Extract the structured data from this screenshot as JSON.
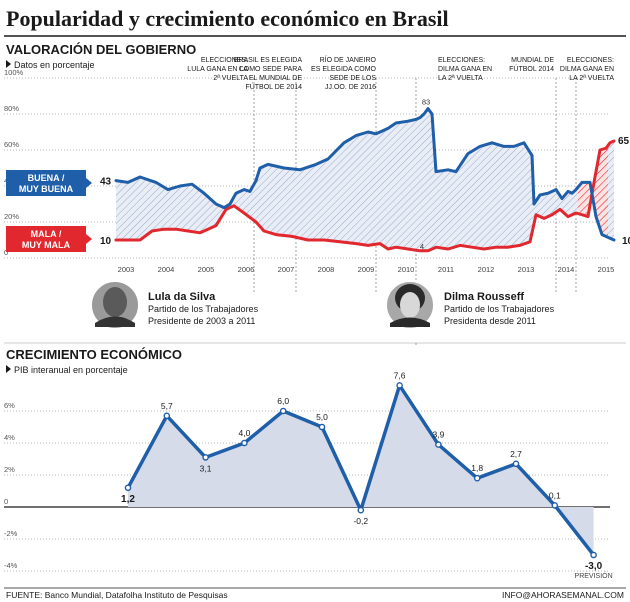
{
  "title": "Popularidad y crecimiento económico en Brasil",
  "section1": {
    "title": "VALORACIÓN DEL GOBIERNO",
    "subtitle": "Datos en porcentaje",
    "yticks": [
      "100%",
      "80%",
      "60%",
      "40%",
      "20%",
      "0"
    ]
  },
  "section2": {
    "title": "CRECIMIENTO ECONÓMICO",
    "subtitle": "PIB interanual en porcentaje",
    "yticks": [
      "6%",
      "4%",
      "2%",
      "0",
      "-2%",
      "-4%"
    ]
  },
  "events": [
    {
      "id": "ev1",
      "lines": [
        "ELECCIONES:",
        "LULA GANA EN LA",
        "2ª VUELTA"
      ]
    },
    {
      "id": "ev2",
      "lines": [
        "BRASIL ES ELEGIDA",
        "COMO SEDE PARA",
        "EL MUNDIAL DE",
        "FÚTBOL DE 2014"
      ]
    },
    {
      "id": "ev3",
      "lines": [
        "RÍO DE JANEIRO",
        "ES ELEGIDA COMO",
        "SEDE DE LOS",
        "JJ.OO. DE 2016"
      ]
    },
    {
      "id": "ev4",
      "lines": [
        "ELECCIONES:",
        "DILMA GANA EN",
        "LA 2ª VUELTA"
      ]
    },
    {
      "id": "ev5",
      "lines": [
        "MUNDIAL DE",
        "FÚTBOL 2014"
      ]
    },
    {
      "id": "ev6",
      "lines": [
        "ELECCIONES:",
        "DILMA GANA EN",
        "LA 2ª VUELTA"
      ]
    }
  ],
  "people": [
    {
      "name": "Lula da Silva",
      "line1": "Partido de los Trabajadores",
      "line2": "Presidente de 2003 a 2011"
    },
    {
      "name": "Dilma Rousseff",
      "line1": "Partido de los Trabajadores",
      "line2": "Presidenta desde 2011"
    }
  ],
  "footer": {
    "source": "FUENTE: Banco Mundial, Datafolha Instituto de Pesquisas",
    "contact": "INFO@AHORASEMANAL.COM"
  },
  "colors": {
    "good": "#1f5ea8",
    "bad": "#e0282e",
    "band": "#d5dbe8",
    "text": "#1a1a1a",
    "grid": "#777777"
  },
  "chart_data": [
    {
      "type": "line",
      "title": "VALORACIÓN DEL GOBIERNO",
      "ylabel": "Datos en porcentaje",
      "ylim": [
        0,
        100
      ],
      "x_categories": [
        "2003",
        "2004",
        "2005",
        "2006",
        "2007",
        "2008",
        "2009",
        "2010",
        "2011",
        "2012",
        "2013",
        "2014",
        "2015"
      ],
      "series": [
        {
          "name": "BUENA / MUY BUENA",
          "color": "#1f5ea8",
          "start_label": "43",
          "end_label": "10",
          "points": [
            [
              2003.0,
              43
            ],
            [
              2003.3,
              42
            ],
            [
              2003.6,
              45
            ],
            [
              2004.0,
              42
            ],
            [
              2004.3,
              38
            ],
            [
              2004.6,
              40
            ],
            [
              2004.9,
              41
            ],
            [
              2005.2,
              36
            ],
            [
              2005.5,
              30
            ],
            [
              2005.7,
              28
            ],
            [
              2005.85,
              30
            ],
            [
              2006.0,
              36
            ],
            [
              2006.2,
              38
            ],
            [
              2006.35,
              37
            ],
            [
              2006.5,
              43
            ],
            [
              2006.6,
              50
            ],
            [
              2006.8,
              52
            ],
            [
              2007.2,
              50
            ],
            [
              2007.6,
              49
            ],
            [
              2008.0,
              52
            ],
            [
              2008.3,
              55
            ],
            [
              2008.7,
              64
            ],
            [
              2009.0,
              68
            ],
            [
              2009.3,
              70
            ],
            [
              2009.5,
              69
            ],
            [
              2009.8,
              72
            ],
            [
              2010.0,
              75
            ],
            [
              2010.3,
              76
            ],
            [
              2010.5,
              77
            ],
            [
              2010.6,
              78
            ],
            [
              2010.7,
              80
            ],
            [
              2010.8,
              83
            ],
            [
              2010.9,
              80
            ],
            [
              2011.0,
              48
            ],
            [
              2011.3,
              49
            ],
            [
              2011.5,
              48
            ],
            [
              2011.8,
              58
            ],
            [
              2012.1,
              62
            ],
            [
              2012.4,
              64
            ],
            [
              2012.7,
              62
            ],
            [
              2012.95,
              62
            ],
            [
              2013.2,
              64
            ],
            [
              2013.4,
              57
            ],
            [
              2013.45,
              30
            ],
            [
              2013.6,
              35
            ],
            [
              2013.8,
              36
            ],
            [
              2014.0,
              38
            ],
            [
              2014.15,
              33
            ],
            [
              2014.3,
              37
            ],
            [
              2014.4,
              36
            ],
            [
              2014.5,
              38
            ],
            [
              2014.65,
              42
            ],
            [
              2014.85,
              42
            ],
            [
              2015.0,
              23
            ],
            [
              2015.15,
              13
            ],
            [
              2015.35,
              11
            ],
            [
              2015.45,
              10
            ]
          ]
        },
        {
          "name": "MALA / MUY MALA",
          "color": "#e0282e",
          "start_label": "10",
          "end_label": "65",
          "points": [
            [
              2003.0,
              10
            ],
            [
              2003.3,
              10
            ],
            [
              2003.6,
              10
            ],
            [
              2003.9,
              15
            ],
            [
              2004.2,
              16
            ],
            [
              2004.5,
              16
            ],
            [
              2004.8,
              15
            ],
            [
              2005.1,
              14
            ],
            [
              2005.3,
              16
            ],
            [
              2005.5,
              18
            ],
            [
              2005.75,
              27
            ],
            [
              2005.95,
              29
            ],
            [
              2006.2,
              25
            ],
            [
              2006.5,
              20
            ],
            [
              2006.7,
              15
            ],
            [
              2007.0,
              13
            ],
            [
              2007.4,
              12
            ],
            [
              2007.8,
              10
            ],
            [
              2008.2,
              10
            ],
            [
              2008.6,
              9
            ],
            [
              2009.0,
              8
            ],
            [
              2009.3,
              7
            ],
            [
              2009.6,
              8
            ],
            [
              2009.8,
              5
            ],
            [
              2010.0,
              6
            ],
            [
              2010.3,
              5
            ],
            [
              2010.6,
              4
            ],
            [
              2010.8,
              4
            ],
            [
              2011.0,
              6
            ],
            [
              2011.3,
              5
            ],
            [
              2011.6,
              7
            ],
            [
              2011.9,
              6
            ],
            [
              2012.2,
              5
            ],
            [
              2012.5,
              6
            ],
            [
              2012.8,
              6
            ],
            [
              2013.1,
              7
            ],
            [
              2013.35,
              9
            ],
            [
              2013.5,
              24
            ],
            [
              2013.7,
              22
            ],
            [
              2013.9,
              24
            ],
            [
              2014.1,
              27
            ],
            [
              2014.3,
              23
            ],
            [
              2014.5,
              25
            ],
            [
              2014.8,
              23
            ],
            [
              2014.95,
              42
            ],
            [
              2015.1,
              60
            ],
            [
              2015.25,
              61
            ],
            [
              2015.35,
              64
            ],
            [
              2015.45,
              65
            ]
          ]
        }
      ]
    },
    {
      "type": "line",
      "title": "CRECIMIENTO ECONÓMICO",
      "ylabel": "PIB interanual en porcentaje",
      "ylim": [
        -4,
        7
      ],
      "x_categories": [
        "2003",
        "2004",
        "2005",
        "2006",
        "2007",
        "2008",
        "2009",
        "2010",
        "2011",
        "2012",
        "2013",
        "2014",
        "2015"
      ],
      "values": [
        1.2,
        5.7,
        3.1,
        4.0,
        6.0,
        5.0,
        -0.2,
        7.6,
        3.9,
        1.8,
        2.7,
        0.1,
        -3.0
      ],
      "labels": [
        "1,2",
        "5,7",
        "3,1",
        "4,0",
        "6,0",
        "5,0",
        "-0,2",
        "7,6",
        "3,9",
        "1,8",
        "2,7",
        "0,1",
        "-3,0"
      ],
      "note_last": "PREVISIÓN"
    }
  ]
}
